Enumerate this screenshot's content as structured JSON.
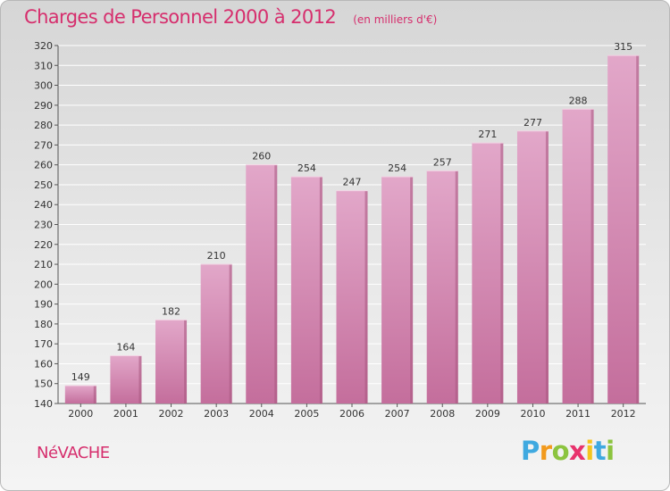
{
  "header": {
    "title": "Charges de Personnel 2000 à 2012",
    "subtitle": "(en milliers d'€)"
  },
  "footer": {
    "commune": "NéVACHE",
    "logo_letters": [
      "P",
      "r",
      "o",
      "x",
      "i",
      "t",
      "i"
    ],
    "logo_colors": [
      "#3fa9e0",
      "#f29a1d",
      "#8cc43f",
      "#e8336d",
      "#f4c51e",
      "#3fa9e0",
      "#8cc43f"
    ]
  },
  "colors": {
    "bar_light": "#e2a7c9",
    "bar_dark": "#c46e9c",
    "bar_right_edge": "#a8587f",
    "text": "#333333",
    "accent": "#d62e6d"
  },
  "chart_data": {
    "type": "bar",
    "categories": [
      "2000",
      "2001",
      "2002",
      "2003",
      "2004",
      "2005",
      "2006",
      "2007",
      "2008",
      "2009",
      "2010",
      "2011",
      "2012"
    ],
    "values": [
      149,
      164,
      182,
      210,
      260,
      254,
      247,
      254,
      257,
      271,
      277,
      288,
      315
    ],
    "title": "Charges de Personnel 2000 à 2012",
    "subtitle": "(en milliers d'€)",
    "xlabel": "",
    "ylabel": "",
    "ylim": [
      140,
      320
    ],
    "yticks": [
      140,
      150,
      160,
      170,
      180,
      190,
      200,
      210,
      220,
      230,
      240,
      250,
      260,
      270,
      280,
      290,
      300,
      310,
      320
    ],
    "grid": true,
    "data_labels": true
  }
}
